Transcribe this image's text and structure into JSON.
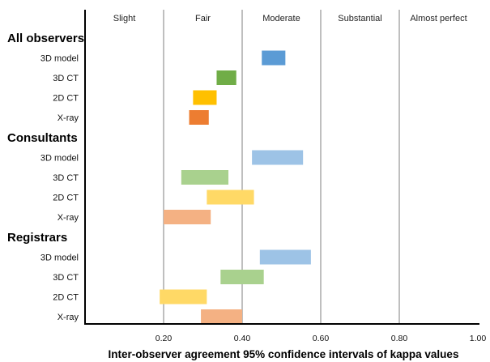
{
  "chart_data": {
    "type": "bar",
    "subtype": "floating-range",
    "xlabel": "Inter-observer agreement 95% confidence intervals of kappa values",
    "xlim": [
      0,
      1
    ],
    "x_ticks": [
      "0.20",
      "0.40",
      "0.60",
      "0.80",
      "1.00"
    ],
    "x_tick_values": [
      0.2,
      0.4,
      0.6,
      0.8,
      1.0
    ],
    "grid_x": true,
    "bands": [
      {
        "label": "Slight",
        "range": [
          0.0,
          0.2
        ]
      },
      {
        "label": "Fair",
        "range": [
          0.2,
          0.4
        ]
      },
      {
        "label": "Moderate",
        "range": [
          0.4,
          0.6
        ]
      },
      {
        "label": "Substantial",
        "range": [
          0.6,
          0.8
        ]
      },
      {
        "label": "Almost perfect",
        "range": [
          0.8,
          1.0
        ]
      }
    ],
    "groups": [
      {
        "label": "All observers",
        "rows": [
          {
            "label": "3D model",
            "low": 0.45,
            "high": 0.51,
            "color": "#5B9BD5"
          },
          {
            "label": "3D CT",
            "low": 0.335,
            "high": 0.385,
            "color": "#70AD47"
          },
          {
            "label": "2D CT",
            "low": 0.275,
            "high": 0.335,
            "color": "#FFC000"
          },
          {
            "label": "X-ray",
            "low": 0.265,
            "high": 0.315,
            "color": "#ED7D31"
          }
        ]
      },
      {
        "label": "Consultants",
        "rows": [
          {
            "label": "3D model",
            "low": 0.425,
            "high": 0.555,
            "color": "#9DC3E6"
          },
          {
            "label": "3D CT",
            "low": 0.245,
            "high": 0.365,
            "color": "#A9D18E"
          },
          {
            "label": "2D CT",
            "low": 0.31,
            "high": 0.43,
            "color": "#FFD966"
          },
          {
            "label": "X-ray",
            "low": 0.2,
            "high": 0.32,
            "color": "#F4B183"
          }
        ]
      },
      {
        "label": "Registrars",
        "rows": [
          {
            "label": "3D model",
            "low": 0.445,
            "high": 0.575,
            "color": "#9DC3E6"
          },
          {
            "label": "3D CT",
            "low": 0.345,
            "high": 0.455,
            "color": "#A9D18E"
          },
          {
            "label": "2D CT",
            "low": 0.19,
            "high": 0.31,
            "color": "#FFD966"
          },
          {
            "label": "X-ray",
            "low": 0.295,
            "high": 0.4,
            "color": "#F4B183"
          }
        ]
      }
    ]
  }
}
